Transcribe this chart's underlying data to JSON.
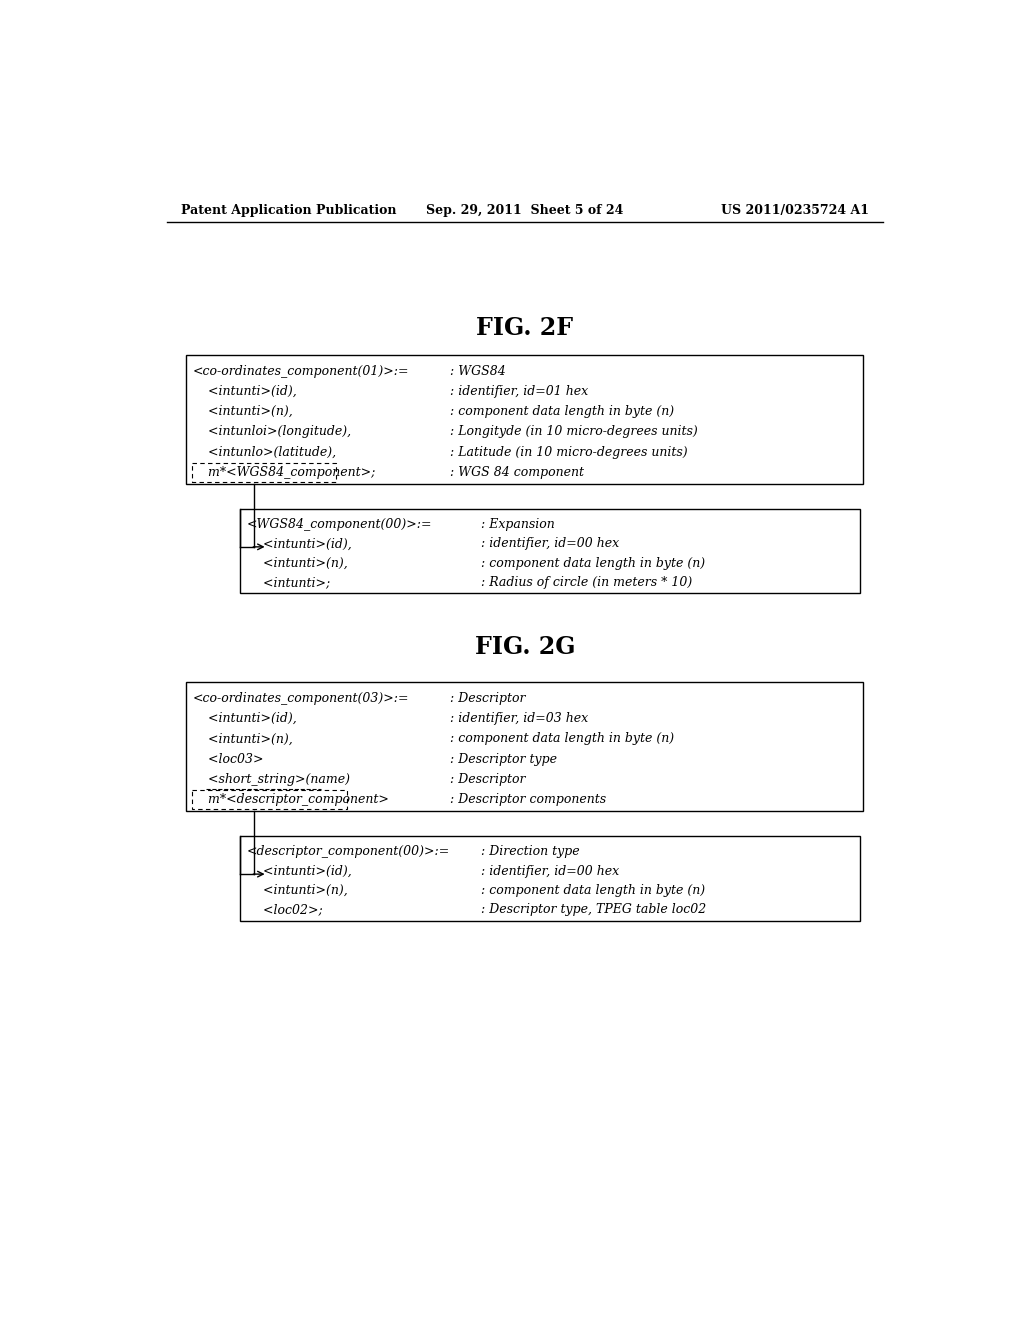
{
  "bg_color": "#ffffff",
  "header_left": "Patent Application Publication",
  "header_center": "Sep. 29, 2011  Sheet 5 of 24",
  "header_right": "US 2011/0235724 A1",
  "fig2f_title": "FIG. 2F",
  "fig2g_title": "FIG. 2G",
  "fig2f_box1": {
    "left_lines": [
      "<co-ordinates_component(01)>:=",
      "    <intunti>(id),",
      "    <intunti>(n),",
      "    <intunloi>(longitude),",
      "    <intunlo>(latitude),",
      "    m*<WGS84_component>;"
    ],
    "right_lines": [
      ": WGS84",
      ": identifier, id=01 hex",
      ": component data length in byte (n)",
      ": Longityde (in 10 micro-degrees units)",
      ": Latitude (in 10 micro-degrees units)",
      ": WGS 84 component"
    ]
  },
  "fig2f_box2": {
    "left_lines": [
      "<WGS84_component(00)>:=",
      "    <intunti>(id),",
      "    <intunti>(n),",
      "    <intunti>;"
    ],
    "right_lines": [
      ": Expansion",
      ": identifier, id=00 hex",
      ": component data length in byte (n)",
      ": Radius of circle (in meters * 10)"
    ]
  },
  "fig2g_box1": {
    "left_lines": [
      "<co-ordinates_component(03)>:=",
      "    <intunti>(id),",
      "    <intunti>(n),",
      "    <loc03>",
      "    <short_string>(name)",
      "    m*<descriptor_component>"
    ],
    "right_lines": [
      ": Descriptor",
      ": identifier, id=03 hex",
      ": component data length in byte (n)",
      ": Descriptor type",
      ": Descriptor",
      ": Descriptor components"
    ]
  },
  "fig2g_box2": {
    "left_lines": [
      "<descriptor_component(00)>:=",
      "    <intunti>(id),",
      "    <intunti>(n),",
      "    <loc02>;"
    ],
    "right_lines": [
      ": Direction type",
      ": identifier, id=00 hex",
      ": component data length in byte (n)",
      ": Descriptor type, TPEG table loc02"
    ]
  }
}
